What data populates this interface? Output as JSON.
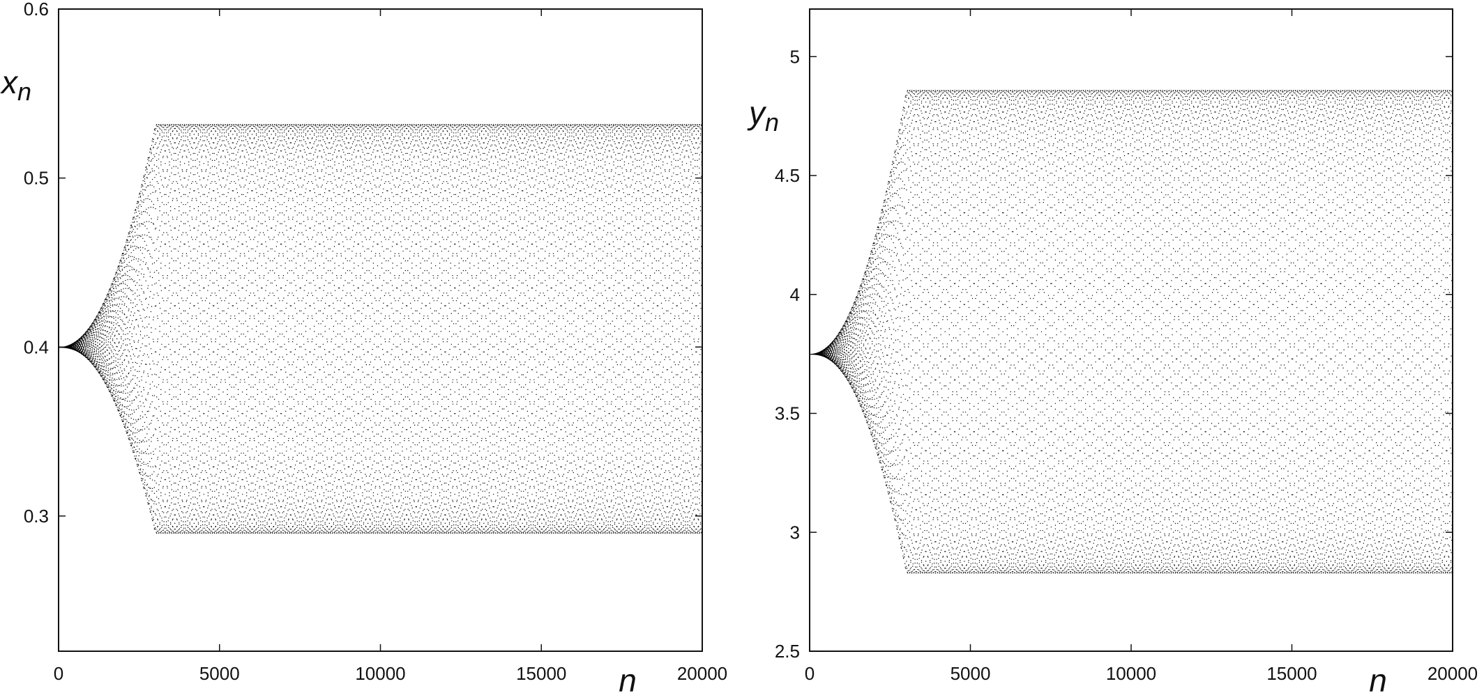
{
  "chart_data": [
    {
      "type": "scatter",
      "title": "",
      "xlabel": "n",
      "ylabel": "x",
      "ylabel_sub": "n",
      "xlim": [
        0,
        20000
      ],
      "ylim": [
        0.22,
        0.6
      ],
      "xticks": [
        0,
        5000,
        10000,
        15000,
        20000
      ],
      "yticks": [
        0.3,
        0.4,
        0.5,
        0.6
      ],
      "xtick_labels": [
        "0",
        "5000",
        "10000",
        "15000",
        "20000"
      ],
      "ytick_labels": [
        "0.3",
        "0.4",
        "0.5",
        "0.6"
      ],
      "grid": false,
      "legend": "none",
      "point_color": "#000000",
      "envelope": {
        "start": 0.4,
        "min": 0.29,
        "max": 0.532,
        "growth_end_n": 3000,
        "oscillation_count_full_range": 30
      }
    },
    {
      "type": "scatter",
      "title": "",
      "xlabel": "n",
      "ylabel": "y",
      "ylabel_sub": "n",
      "xlim": [
        0,
        20000
      ],
      "ylim": [
        2.5,
        5.2
      ],
      "xticks": [
        0,
        5000,
        10000,
        15000,
        20000
      ],
      "yticks": [
        2.5,
        3,
        3.5,
        4,
        4.5,
        5
      ],
      "xtick_labels": [
        "0",
        "5000",
        "10000",
        "15000",
        "20000"
      ],
      "ytick_labels": [
        "2.5",
        "3",
        "3.5",
        "4",
        "4.5",
        "5"
      ],
      "grid": false,
      "legend": "none",
      "point_color": "#000000",
      "envelope": {
        "start": 3.75,
        "min": 2.83,
        "max": 4.86,
        "growth_end_n": 3000,
        "oscillation_count_full_range": 30
      }
    }
  ]
}
